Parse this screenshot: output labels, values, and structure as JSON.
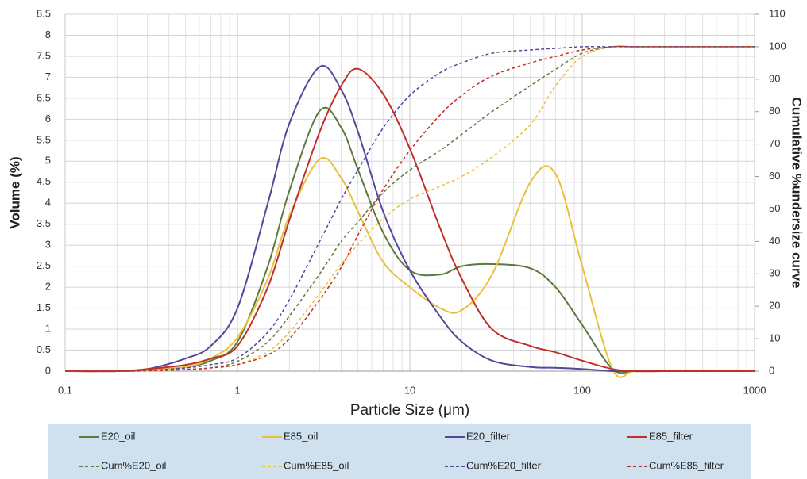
{
  "chart_data": {
    "type": "line",
    "x_label": "Particle Size (μm)",
    "y_label": "Volume (%)",
    "y2_label": "Cumulative %undersize curve",
    "x": [
      0.1,
      0.2,
      0.3,
      0.5,
      0.7,
      1,
      1.5,
      2,
      3,
      4,
      5,
      7,
      10,
      15,
      20,
      30,
      50,
      70,
      100,
      150,
      200,
      300,
      500,
      1000
    ],
    "xlim": [
      0.1,
      1000
    ],
    "xticks": [
      0.1,
      1,
      10,
      100,
      1000
    ],
    "xscale": "log",
    "ylim": [
      0,
      8.5
    ],
    "yticks": [
      0,
      0.5,
      1,
      1.5,
      2,
      2.5,
      3,
      3.5,
      4,
      4.5,
      5,
      5.5,
      6,
      6.5,
      7,
      7.5,
      8,
      8.5
    ],
    "y2lim": [
      0,
      110
    ],
    "y2ticks": [
      0,
      10,
      20,
      30,
      40,
      50,
      60,
      70,
      80,
      90,
      100,
      110
    ],
    "grid": true,
    "minor_grid": true,
    "legend": "bottom",
    "series": [
      {
        "name": "E20_oil",
        "color": "#5b7a3c",
        "dashed": false,
        "values": [
          0,
          0,
          0.02,
          0.1,
          0.25,
          0.7,
          2.5,
          4.3,
          6.2,
          5.8,
          4.8,
          3.3,
          2.4,
          2.3,
          2.5,
          2.55,
          2.45,
          2.0,
          1.1,
          0.05,
          0,
          0,
          0,
          0
        ]
      },
      {
        "name": "E85_oil",
        "color": "#e8c13c",
        "dashed": false,
        "values": [
          0,
          0,
          0.02,
          0.1,
          0.3,
          0.8,
          2.2,
          3.7,
          5.05,
          4.6,
          3.8,
          2.6,
          2.0,
          1.5,
          1.45,
          2.3,
          4.5,
          4.7,
          2.5,
          0.05,
          0,
          0,
          0,
          0
        ]
      },
      {
        "name": "E20_filter",
        "color": "#55479a",
        "dashed": false,
        "values": [
          0,
          0,
          0.05,
          0.3,
          0.6,
          1.5,
          4.0,
          5.9,
          7.25,
          6.7,
          5.7,
          3.8,
          2.4,
          1.3,
          0.7,
          0.25,
          0.1,
          0.08,
          0.05,
          0,
          0,
          0,
          0,
          0
        ]
      },
      {
        "name": "E85_filter",
        "color": "#c0302a",
        "dashed": false,
        "values": [
          0,
          0,
          0.05,
          0.15,
          0.3,
          0.6,
          2.0,
          3.6,
          5.7,
          6.8,
          7.2,
          6.6,
          5.3,
          3.4,
          2.2,
          1.0,
          0.6,
          0.45,
          0.25,
          0.05,
          0,
          0,
          0,
          0
        ]
      },
      {
        "name": "Cum%E20_oil",
        "color": "#5b7a3c",
        "dashed": true,
        "axis": "y2",
        "values": [
          0,
          0,
          0.1,
          0.5,
          1,
          3,
          9,
          17,
          30,
          40,
          46,
          55,
          62,
          68,
          73,
          80,
          88,
          93,
          98,
          100,
          100,
          100,
          100,
          100
        ]
      },
      {
        "name": "Cum%E85_oil",
        "color": "#e8c13c",
        "dashed": true,
        "axis": "y2",
        "values": [
          0,
          0,
          0.1,
          0.5,
          1,
          2,
          6,
          12,
          24,
          33,
          39,
          47,
          53,
          57,
          60,
          66,
          76,
          88,
          97,
          100,
          100,
          100,
          100,
          100
        ]
      },
      {
        "name": "Cum%E20_filter",
        "color": "#55479a",
        "dashed": true,
        "axis": "y2",
        "values": [
          0,
          0,
          0.2,
          1,
          2,
          4,
          12,
          22,
          40,
          53,
          62,
          75,
          85,
          92,
          95,
          98,
          99,
          99.5,
          100,
          100,
          100,
          100,
          100,
          100
        ]
      },
      {
        "name": "Cum%E85_filter",
        "color": "#c0302a",
        "dashed": true,
        "axis": "y2",
        "values": [
          0,
          0,
          0.1,
          0.5,
          1,
          2,
          5,
          10,
          22,
          32,
          42,
          56,
          68,
          79,
          85,
          91,
          95,
          97,
          99,
          100,
          100,
          100,
          100,
          100
        ]
      }
    ]
  }
}
